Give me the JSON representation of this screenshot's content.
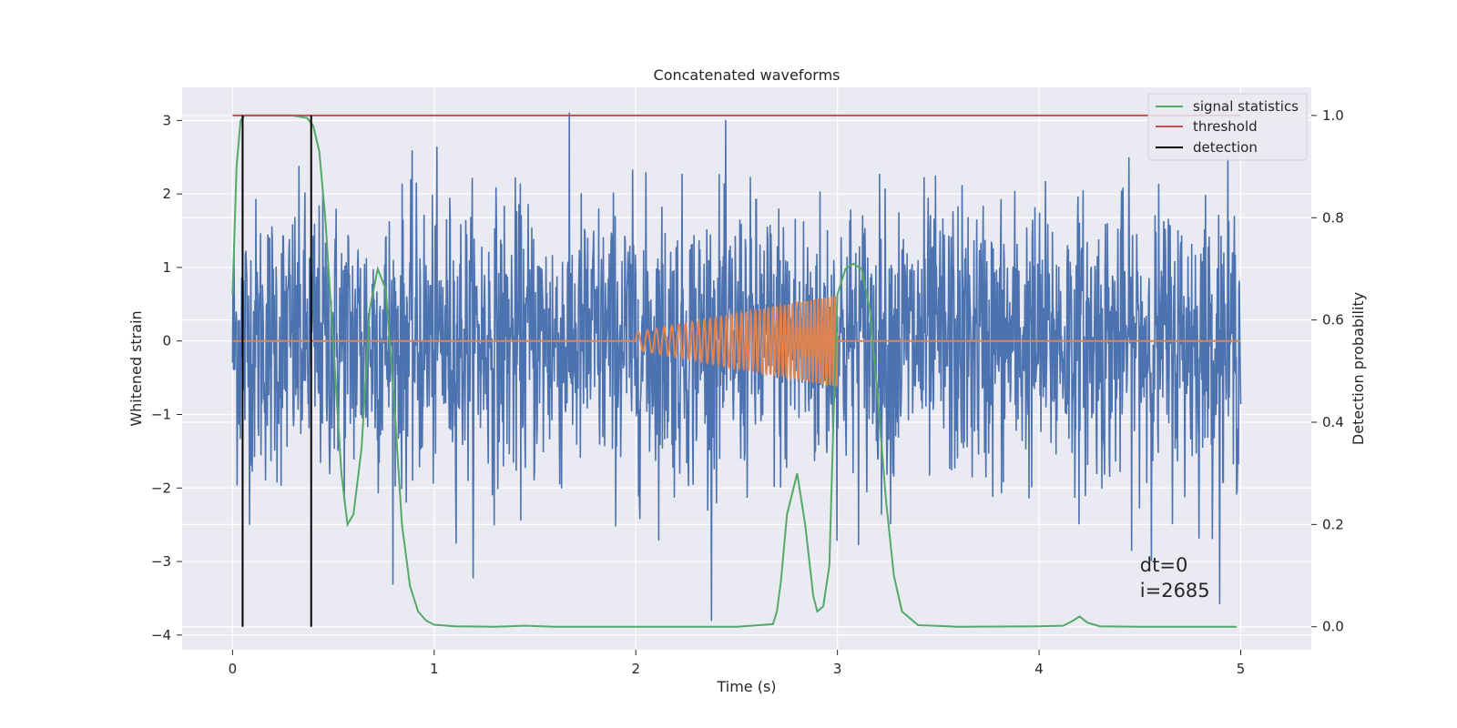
{
  "chart_data": {
    "type": "line",
    "title": "Concatenated waveforms",
    "xlabel": "Time (s)",
    "ylabel": "Whitened strain",
    "ylabel_right": "Detection probability",
    "xlim": [
      -0.25,
      5.35
    ],
    "ylim": [
      -4.2,
      3.45
    ],
    "ylim_right": [
      -0.045,
      1.055
    ],
    "xticks": [
      0,
      1,
      2,
      3,
      4,
      5
    ],
    "yticks": [
      -4,
      -3,
      -2,
      -1,
      0,
      1,
      2,
      3
    ],
    "yticks_right": [
      0.0,
      0.2,
      0.4,
      0.6,
      0.8,
      1.0
    ],
    "xtick_labels": [
      "0",
      "1",
      "2",
      "3",
      "4",
      "5"
    ],
    "ytick_labels": [
      "−4",
      "−3",
      "−2",
      "−1",
      "0",
      "1",
      "2",
      "3"
    ],
    "ytick_right_labels": [
      "0.0",
      "0.2",
      "0.4",
      "0.6",
      "0.8",
      "1.0"
    ],
    "grid": true,
    "legend_position": "top-right",
    "colors": {
      "background": "#eaeaf2",
      "strain": "#4c72b0",
      "template": "#dd8452",
      "signal_statistics": "#55a868",
      "threshold": "#c44e52",
      "detection": "#000000"
    },
    "strain": {
      "x_range": [
        0,
        5
      ],
      "noise_sigma": 0.95,
      "peak_max": 3.1,
      "peak_min": -3.8
    },
    "template": {
      "start": 2.0,
      "end": 3.0,
      "amp_start": 0.12,
      "amp_end": 0.62,
      "freq_start": 20,
      "freq_end": 62
    },
    "signal_statistics": {
      "name": "signal statistics",
      "x": [
        0,
        0.02,
        0.04,
        0.06,
        0.1,
        0.2,
        0.3,
        0.37,
        0.4,
        0.43,
        0.46,
        0.5,
        0.54,
        0.57,
        0.6,
        0.64,
        0.68,
        0.72,
        0.76,
        0.8,
        0.84,
        0.88,
        0.92,
        0.96,
        1.0,
        1.1,
        1.3,
        1.45,
        1.6,
        2.0,
        2.5,
        2.68,
        2.7,
        2.72,
        2.75,
        2.8,
        2.84,
        2.88,
        2.9,
        2.93,
        2.96,
        2.98,
        3.0,
        3.04,
        3.08,
        3.12,
        3.16,
        3.2,
        3.24,
        3.28,
        3.32,
        3.4,
        3.6,
        4.0,
        4.12,
        4.16,
        4.2,
        4.24,
        4.3,
        4.5,
        4.98
      ],
      "values": [
        0.65,
        0.9,
        0.99,
        1.0,
        1.0,
        1.0,
        1.0,
        0.995,
        0.98,
        0.93,
        0.8,
        0.55,
        0.3,
        0.2,
        0.22,
        0.35,
        0.62,
        0.7,
        0.66,
        0.45,
        0.2,
        0.08,
        0.03,
        0.012,
        0.004,
        0.001,
        0.0,
        0.002,
        0.0,
        0.0,
        0.0,
        0.005,
        0.03,
        0.09,
        0.22,
        0.3,
        0.2,
        0.06,
        0.03,
        0.04,
        0.12,
        0.4,
        0.65,
        0.7,
        0.71,
        0.7,
        0.62,
        0.45,
        0.25,
        0.1,
        0.03,
        0.003,
        0.0,
        0.001,
        0.002,
        0.01,
        0.02,
        0.008,
        0.001,
        0.0,
        0.0
      ]
    },
    "threshold": {
      "name": "threshold",
      "value": 1.0
    },
    "detection": {
      "name": "detection",
      "x": [
        0.05,
        0.39
      ]
    },
    "legend": [
      "signal statistics",
      "threshold",
      "detection"
    ],
    "annotation": {
      "line1": "dt=0",
      "line2": "i=2685",
      "x": 4.5,
      "y": -3.05
    }
  }
}
